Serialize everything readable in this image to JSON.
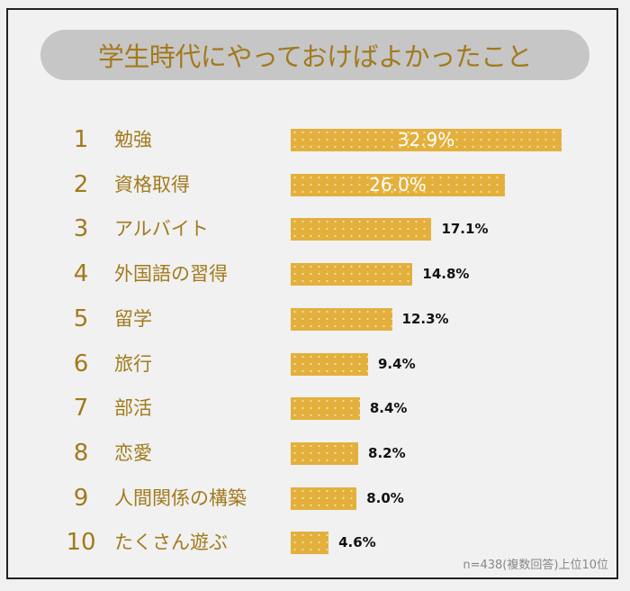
{
  "chart_data": {
    "type": "bar",
    "orientation": "horizontal",
    "title": "学生時代にやっておけばよかったこと",
    "ranks": [
      "1",
      "2",
      "3",
      "4",
      "5",
      "6",
      "7",
      "8",
      "9",
      "10"
    ],
    "categories": [
      "勉強",
      "資格取得",
      "アルバイト",
      "外国語の習得",
      "留学",
      "旅行",
      "部活",
      "恋愛",
      "人間関係の構築",
      "たくさん遊ぶ"
    ],
    "values": [
      32.9,
      26.0,
      17.1,
      14.8,
      12.3,
      9.4,
      8.4,
      8.2,
      8.0,
      4.6
    ],
    "value_labels": [
      "32.9%",
      "26.0%",
      "17.1%",
      "14.8%",
      "12.3%",
      "9.4%",
      "8.4%",
      "8.2%",
      "8.0%",
      "4.6%"
    ],
    "unit": "%",
    "note": "n=438(複数回答)上位10位",
    "grid": false,
    "colors": {
      "bar": "#e3b03d",
      "text": "#a27a1c",
      "title_bg": "#c6c6c6"
    }
  }
}
